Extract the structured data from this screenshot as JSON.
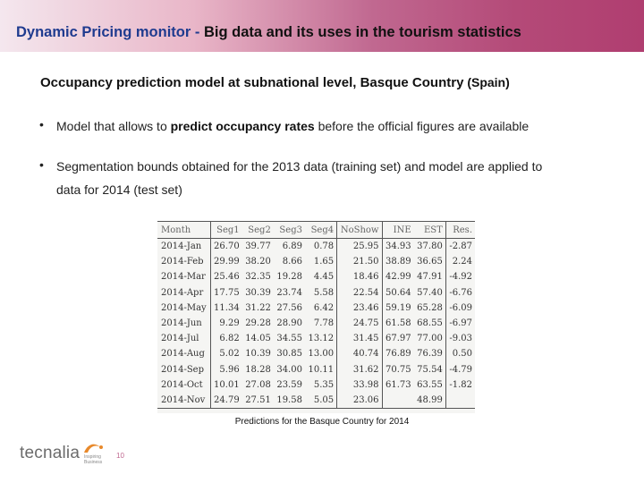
{
  "header": {
    "title_part1": "Dynamic Pricing monitor",
    "title_sep": " - ",
    "title_part2": "Big data and its uses in the tourism statistics"
  },
  "subtitle": {
    "main": "Occupancy prediction model at subnational level, Basque Country",
    "region": " (Spain)"
  },
  "bullets": [
    {
      "marker": "•",
      "prefix": "Model that allows to ",
      "bold": "predict occupancy rates",
      "suffix": " before the official figures are available"
    },
    {
      "marker": "•",
      "line1": "Segmentation bounds obtained for the 2013 data (training set) and model  are applied to",
      "line2": "data  for 2014 (test set)"
    }
  ],
  "table": {
    "headers": [
      "Month",
      "Seg1",
      "Seg2",
      "Seg3",
      "Seg4",
      "NoShow",
      "INE",
      "EST",
      "Res."
    ],
    "rows": [
      [
        "2014-Jan",
        "26.70",
        "39.77",
        "6.89",
        "0.78",
        "25.95",
        "34.93",
        "37.80",
        "-2.87"
      ],
      [
        "2014-Feb",
        "29.99",
        "38.20",
        "8.66",
        "1.65",
        "21.50",
        "38.89",
        "36.65",
        "2.24"
      ],
      [
        "2014-Mar",
        "25.46",
        "32.35",
        "19.28",
        "4.45",
        "18.46",
        "42.99",
        "47.91",
        "-4.92"
      ],
      [
        "2014-Apr",
        "17.75",
        "30.39",
        "23.74",
        "5.58",
        "22.54",
        "50.64",
        "57.40",
        "-6.76"
      ],
      [
        "2014-May",
        "11.34",
        "31.22",
        "27.56",
        "6.42",
        "23.46",
        "59.19",
        "65.28",
        "-6.09"
      ],
      [
        "2014-Jun",
        "9.29",
        "29.28",
        "28.90",
        "7.78",
        "24.75",
        "61.58",
        "68.55",
        "-6.97"
      ],
      [
        "2014-Jul",
        "6.82",
        "14.05",
        "34.55",
        "13.12",
        "31.45",
        "67.97",
        "77.00",
        "-9.03"
      ],
      [
        "2014-Aug",
        "5.02",
        "10.39",
        "30.85",
        "13.00",
        "40.74",
        "76.89",
        "76.39",
        "0.50"
      ],
      [
        "2014-Sep",
        "5.96",
        "18.28",
        "34.00",
        "10.11",
        "31.62",
        "70.75",
        "75.54",
        "-4.79"
      ],
      [
        "2014-Oct",
        "10.01",
        "27.08",
        "23.59",
        "5.35",
        "33.98",
        "61.73",
        "63.55",
        "-1.82"
      ],
      [
        "2014-Nov",
        "24.79",
        "27.51",
        "19.58",
        "5.05",
        "23.06",
        "",
        "48.99",
        ""
      ]
    ]
  },
  "caption": "Predictions for the Basque Country for 2014",
  "footer": {
    "logo_text": "tecnalia",
    "logo_tag": "Inspiring\nBusiness",
    "page_number": "10"
  },
  "colors": {
    "title_blue": "#1f3b8f",
    "accent_magenta": "#b03e70",
    "logo_orange": "#e8892b"
  }
}
